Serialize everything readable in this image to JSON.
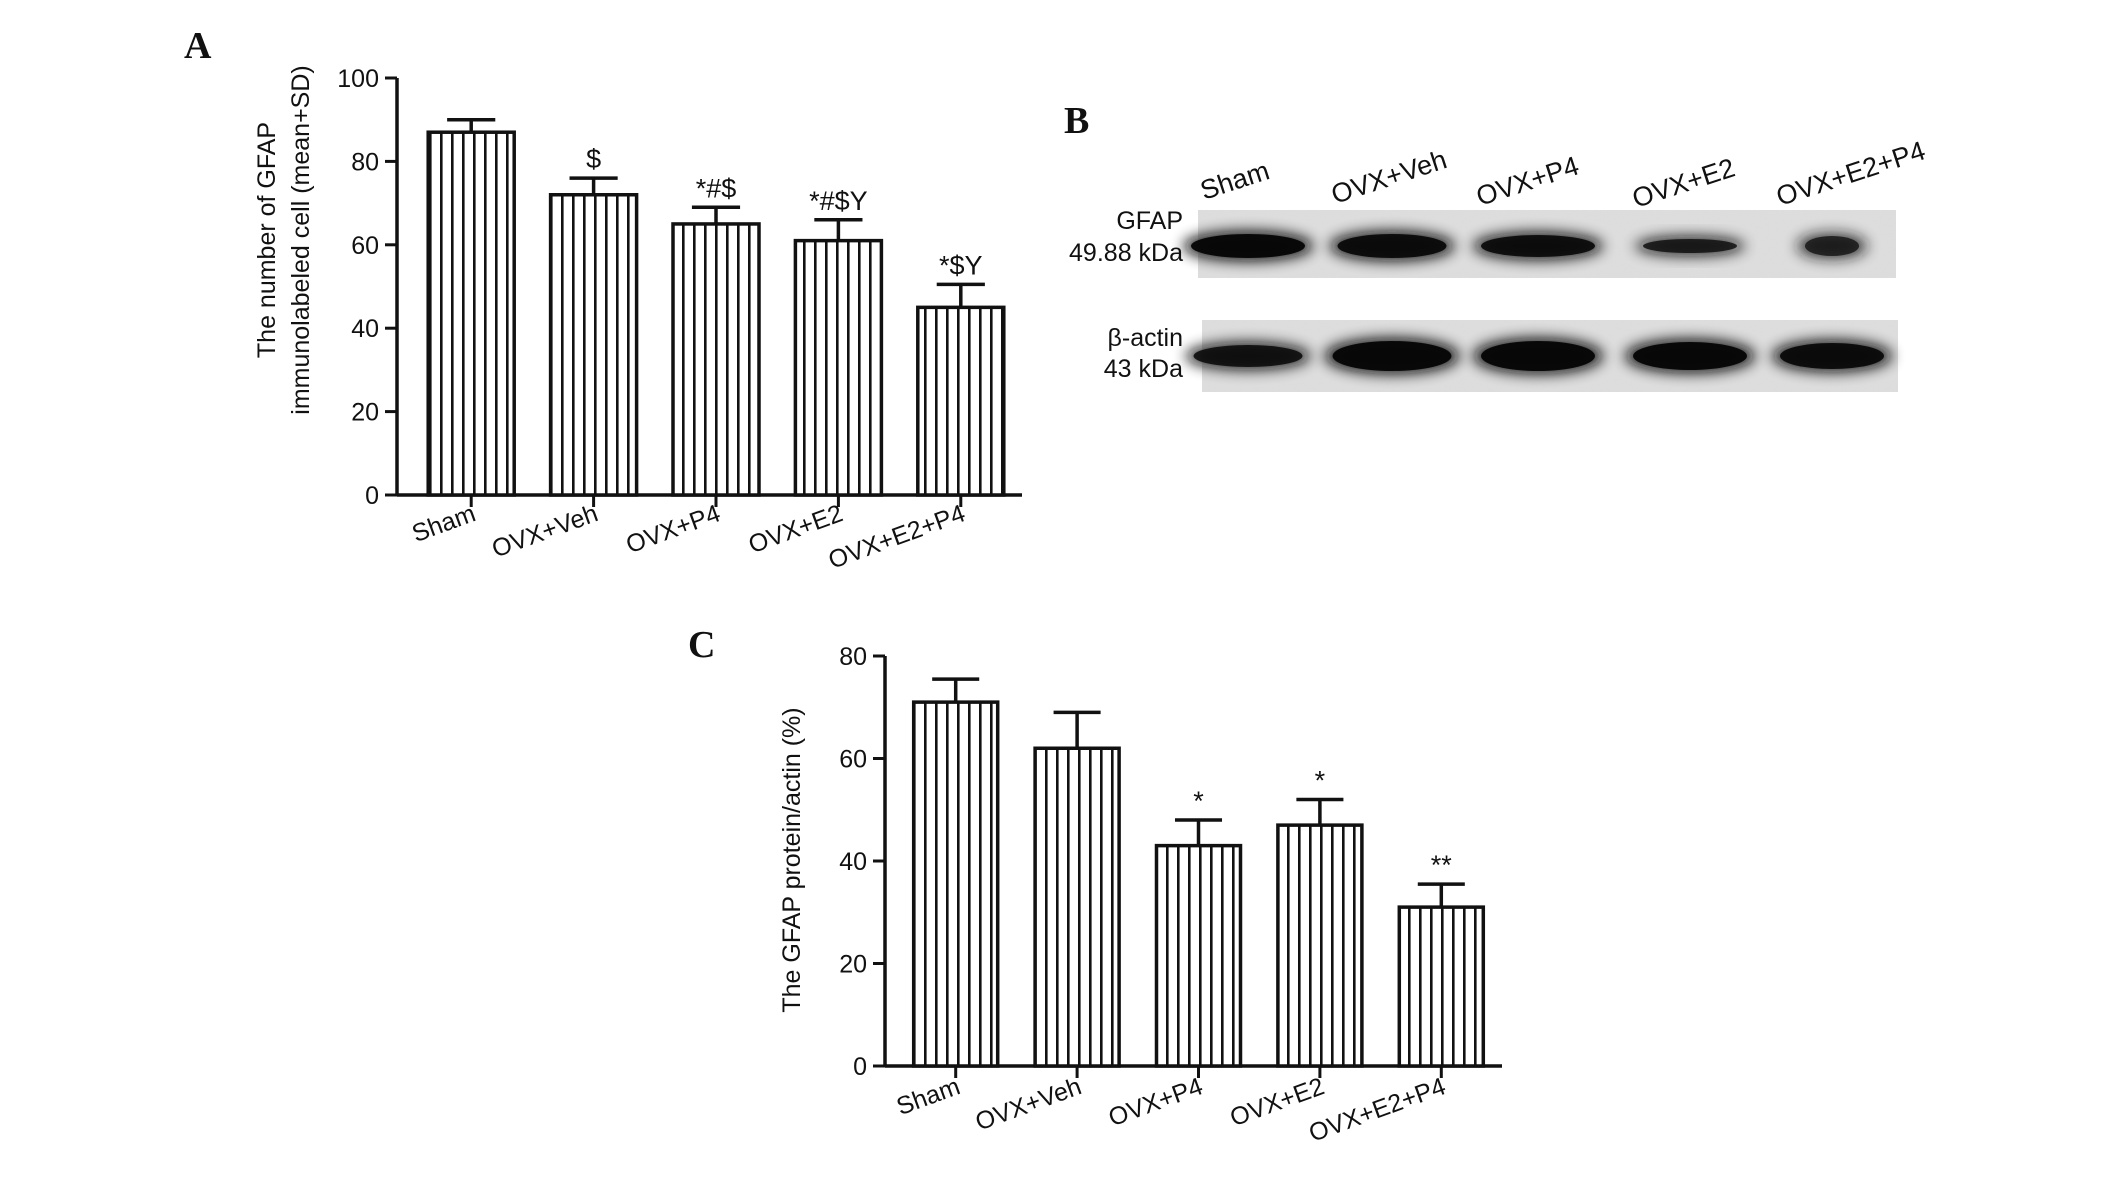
{
  "panels": {
    "a": {
      "letter": "A"
    },
    "b": {
      "letter": "B"
    },
    "c": {
      "letter": "C"
    }
  },
  "chart_data": [
    {
      "id": "chart-a",
      "type": "bar",
      "categories": [
        "Sham",
        "OVX+Veh",
        "OVX+P4",
        "OVX+E2",
        "OVX+E2+P4"
      ],
      "values": [
        87,
        72,
        65,
        61,
        45
      ],
      "errors": [
        3,
        4,
        4,
        5,
        5.5
      ],
      "annotations": [
        "",
        "$",
        "*#$",
        "*#$Y",
        "*$Y"
      ],
      "ylabel_lines": [
        "The number of GFAP",
        "immunolabeled cell (mean+SD)"
      ],
      "ylim": [
        0,
        100
      ],
      "yticks": [
        0,
        20,
        40,
        60,
        80,
        100
      ],
      "bar_pattern": "vertical-stripes",
      "grid": false
    },
    {
      "id": "chart-c",
      "type": "bar",
      "categories": [
        "Sham",
        "OVX+Veh",
        "OVX+P4",
        "OVX+E2",
        "OVX+E2+P4"
      ],
      "values": [
        71,
        62,
        43,
        47,
        31
      ],
      "errors": [
        4.5,
        7,
        5,
        5,
        4.5
      ],
      "annotations": [
        "",
        "",
        "*",
        "*",
        "**"
      ],
      "ylabel_lines": [
        "The GFAP protein/actin  (%)"
      ],
      "ylim": [
        0,
        80
      ],
      "yticks": [
        0,
        20,
        40,
        60,
        80
      ],
      "bar_pattern": "vertical-stripes",
      "grid": false
    }
  ],
  "western_blot": {
    "lanes": [
      "Sham",
      "OVX+Veh",
      "OVX+P4",
      "OVX+E2",
      "OVX+E2+P4"
    ],
    "rows": [
      {
        "label_lines": [
          "GFAP",
          "49.88 kDa"
        ],
        "band_intensity": [
          0.95,
          0.9,
          0.85,
          0.7,
          0.6
        ]
      },
      {
        "label_lines": [
          "β-actin",
          "43 kDa"
        ],
        "band_intensity": [
          0.8,
          0.95,
          0.95,
          0.95,
          0.9
        ]
      }
    ]
  }
}
